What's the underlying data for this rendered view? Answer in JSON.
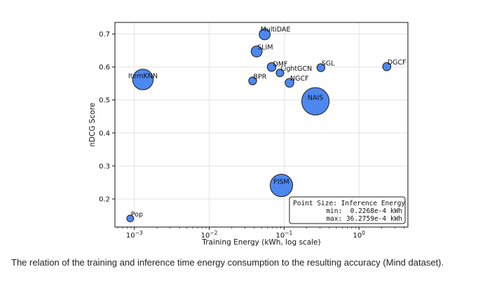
{
  "chart_data": {
    "type": "scatter",
    "title": "",
    "xlabel": "Training Energy (kWh, log scale)",
    "ylabel": "nDCG Score",
    "xscale": "log",
    "xlim": [
      0.00055,
      4.5
    ],
    "ylim": [
      0.115,
      0.735
    ],
    "grid": true,
    "x_ticks": [
      {
        "value": 0.001,
        "base": "10",
        "exp": "−3"
      },
      {
        "value": 0.01,
        "base": "10",
        "exp": "−2"
      },
      {
        "value": 0.1,
        "base": "10",
        "exp": "−1"
      },
      {
        "value": 1,
        "base": "10",
        "exp": "0"
      }
    ],
    "y_ticks": [
      {
        "value": 0.2,
        "label": "0.2"
      },
      {
        "value": 0.3,
        "label": "0.3"
      },
      {
        "value": 0.4,
        "label": "0.4"
      },
      {
        "value": 0.5,
        "label": "0.5"
      },
      {
        "value": 0.6,
        "label": "0.6"
      },
      {
        "value": 0.7,
        "label": "0.7"
      }
    ],
    "point_color": "#4d88f0",
    "edge_color": "#1a1a1a",
    "size_encoding": "Inference Energy (×10⁻⁴ kWh)",
    "points": [
      {
        "name": "MultiDAE",
        "x": 0.055,
        "y": 0.699,
        "size": 2.6,
        "label_pos": "top"
      },
      {
        "name": "SLIM",
        "x": 0.043,
        "y": 0.647,
        "size": 2.6,
        "label_pos": "top-right"
      },
      {
        "name": "DMF",
        "x": 0.068,
        "y": 0.6,
        "size": 1.0,
        "label_pos": "right"
      },
      {
        "name": "LightGCN",
        "x": 0.088,
        "y": 0.582,
        "size": 0.5,
        "label_pos": "top-right"
      },
      {
        "name": "BPR",
        "x": 0.038,
        "y": 0.558,
        "size": 0.6,
        "label_pos": "top-right"
      },
      {
        "name": "NGCF",
        "x": 0.118,
        "y": 0.552,
        "size": 1.0,
        "label_pos": "top-right"
      },
      {
        "name": "SGL",
        "x": 0.31,
        "y": 0.598,
        "size": 0.6,
        "label_pos": "top-right"
      },
      {
        "name": "DGCF",
        "x": 2.35,
        "y": 0.601,
        "size": 0.7,
        "label_pos": "top-right"
      },
      {
        "name": "ItemKNN",
        "x": 0.0013,
        "y": 0.562,
        "size": 17.5,
        "label_pos": "center"
      },
      {
        "name": "NAIS",
        "x": 0.262,
        "y": 0.496,
        "size": 36.2759,
        "label_pos": "center"
      },
      {
        "name": "FISM",
        "x": 0.092,
        "y": 0.241,
        "size": 22.0,
        "label_pos": "center"
      },
      {
        "name": "Pop",
        "x": 0.00088,
        "y": 0.141,
        "size": 0.2268,
        "label_pos": "top-right"
      }
    ],
    "legend": {
      "title": "Point Size: Inference Energy",
      "lines": [
        "min:  0.2268e-4 kWh",
        "max: 36.2759e-4 kWh"
      ],
      "placement": "bottom-right"
    }
  },
  "caption": "The relation of the training and inference time energy consumption to the resulting accuracy (Mind dataset)."
}
